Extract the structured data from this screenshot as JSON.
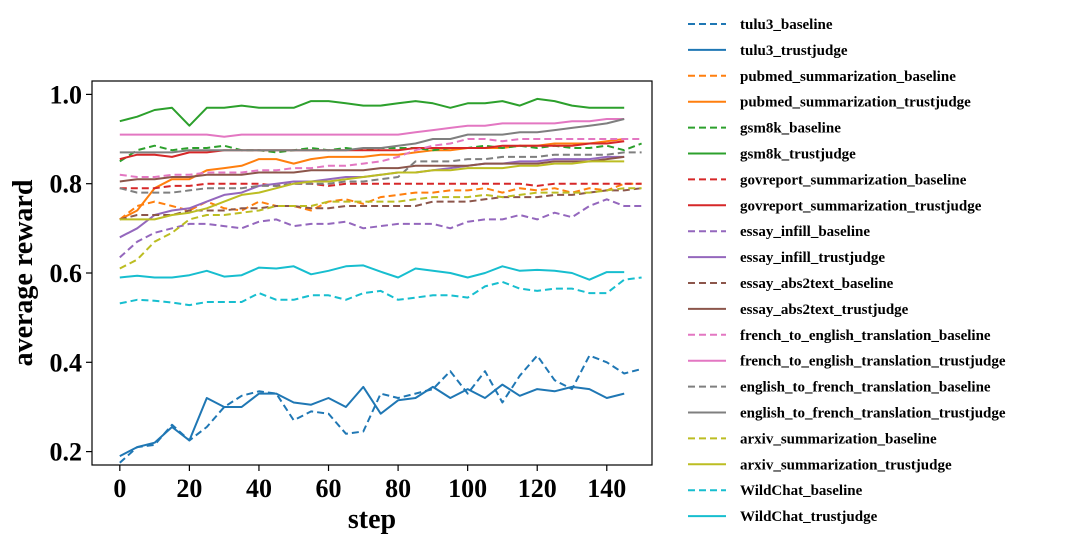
{
  "chart_data": {
    "type": "line",
    "title": "",
    "xlabel": "step",
    "ylabel": "average reward",
    "xlim": [
      -8,
      153
    ],
    "ylim": [
      0.17,
      1.03
    ],
    "xticks": [
      0,
      20,
      40,
      60,
      80,
      100,
      120,
      140
    ],
    "xtick_labels": [
      "0",
      "20",
      "40",
      "60",
      "80",
      "100",
      "120",
      "140"
    ],
    "yticks": [
      0.2,
      0.4,
      0.6,
      0.8,
      1.0
    ],
    "ytick_labels": [
      "0.2",
      "0.4",
      "0.6",
      "0.8",
      "1.0"
    ],
    "grid": false,
    "legend_position": "outside-right",
    "x": [
      0,
      5,
      10,
      15,
      20,
      25,
      30,
      35,
      40,
      45,
      50,
      55,
      60,
      65,
      70,
      75,
      80,
      85,
      90,
      95,
      100,
      105,
      110,
      115,
      120,
      125,
      130,
      135,
      140,
      145,
      150
    ],
    "series": [
      {
        "name": "tulu3_baseline",
        "color": "#1f77b4",
        "dashed": true,
        "values": [
          0.175,
          0.21,
          0.215,
          0.26,
          0.225,
          0.255,
          0.3,
          0.325,
          0.335,
          0.33,
          0.27,
          0.29,
          0.285,
          0.24,
          0.245,
          0.33,
          0.32,
          0.33,
          0.34,
          0.38,
          0.33,
          0.38,
          0.31,
          0.37,
          0.415,
          0.36,
          0.34,
          0.415,
          0.4,
          0.375,
          0.385
        ]
      },
      {
        "name": "tulu3_trustjudge",
        "color": "#1f77b4",
        "dashed": false,
        "values": [
          0.19,
          0.21,
          0.22,
          0.255,
          0.225,
          0.32,
          0.3,
          0.3,
          0.33,
          0.33,
          0.31,
          0.305,
          0.32,
          0.3,
          0.345,
          0.285,
          0.315,
          0.32,
          0.345,
          0.32,
          0.34,
          0.32,
          0.35,
          0.325,
          0.34,
          0.335,
          0.345,
          0.34,
          0.32,
          0.33,
          null
        ]
      },
      {
        "name": "pubmed_summarization_baseline",
        "color": "#ff7f0e",
        "dashed": true,
        "values": [
          0.72,
          0.75,
          0.76,
          0.75,
          0.74,
          0.76,
          0.745,
          0.74,
          0.76,
          0.75,
          0.75,
          0.74,
          0.76,
          0.765,
          0.755,
          0.77,
          0.775,
          0.78,
          0.78,
          0.785,
          0.785,
          0.79,
          0.78,
          0.79,
          0.785,
          0.79,
          0.78,
          0.79,
          0.785,
          0.8,
          0.8
        ]
      },
      {
        "name": "pubmed_summarization_trustjudge",
        "color": "#ff7f0e",
        "dashed": false,
        "values": [
          0.72,
          0.74,
          0.79,
          0.81,
          0.81,
          0.83,
          0.835,
          0.84,
          0.855,
          0.855,
          0.845,
          0.855,
          0.86,
          0.86,
          0.86,
          0.865,
          0.865,
          0.87,
          0.875,
          0.875,
          0.88,
          0.88,
          0.88,
          0.885,
          0.885,
          0.89,
          0.89,
          0.89,
          0.895,
          0.9,
          null
        ]
      },
      {
        "name": "gsm8k_baseline",
        "color": "#2ca02c",
        "dashed": true,
        "values": [
          0.85,
          0.875,
          0.885,
          0.875,
          0.88,
          0.88,
          0.885,
          0.875,
          0.875,
          0.87,
          0.875,
          0.88,
          0.875,
          0.88,
          0.875,
          0.88,
          0.88,
          0.88,
          0.875,
          0.88,
          0.88,
          0.885,
          0.88,
          0.885,
          0.88,
          0.885,
          0.88,
          0.88,
          0.885,
          0.875,
          0.89
        ]
      },
      {
        "name": "gsm8k_trustjudge",
        "color": "#2ca02c",
        "dashed": false,
        "values": [
          0.94,
          0.95,
          0.965,
          0.97,
          0.93,
          0.97,
          0.97,
          0.975,
          0.97,
          0.97,
          0.97,
          0.985,
          0.985,
          0.98,
          0.975,
          0.975,
          0.98,
          0.985,
          0.98,
          0.97,
          0.98,
          0.98,
          0.985,
          0.975,
          0.99,
          0.985,
          0.975,
          0.97,
          0.97,
          0.97,
          null
        ]
      },
      {
        "name": "govreport_summarization_baseline",
        "color": "#d62728",
        "dashed": true,
        "values": [
          0.79,
          0.79,
          0.79,
          0.795,
          0.795,
          0.8,
          0.8,
          0.8,
          0.8,
          0.795,
          0.8,
          0.8,
          0.795,
          0.8,
          0.8,
          0.8,
          0.8,
          0.8,
          0.8,
          0.8,
          0.8,
          0.8,
          0.8,
          0.8,
          0.795,
          0.8,
          0.8,
          0.8,
          0.8,
          0.8,
          0.8
        ]
      },
      {
        "name": "govreport_summarization_trustjudge",
        "color": "#d62728",
        "dashed": false,
        "values": [
          0.855,
          0.865,
          0.865,
          0.86,
          0.87,
          0.87,
          0.875,
          0.875,
          0.875,
          0.875,
          0.875,
          0.875,
          0.875,
          0.875,
          0.875,
          0.875,
          0.875,
          0.88,
          0.88,
          0.88,
          0.88,
          0.88,
          0.885,
          0.885,
          0.885,
          0.885,
          0.885,
          0.89,
          0.89,
          0.895,
          null
        ]
      },
      {
        "name": "essay_infill_baseline",
        "color": "#9467bd",
        "dashed": true,
        "values": [
          0.635,
          0.67,
          0.69,
          0.7,
          0.71,
          0.71,
          0.705,
          0.7,
          0.715,
          0.72,
          0.705,
          0.71,
          0.71,
          0.715,
          0.7,
          0.705,
          0.71,
          0.71,
          0.71,
          0.7,
          0.715,
          0.72,
          0.72,
          0.73,
          0.72,
          0.735,
          0.725,
          0.75,
          0.765,
          0.75,
          0.75
        ]
      },
      {
        "name": "essay_infill_trustjudge",
        "color": "#9467bd",
        "dashed": false,
        "values": [
          0.68,
          0.7,
          0.73,
          0.74,
          0.745,
          0.76,
          0.775,
          0.78,
          0.795,
          0.8,
          0.805,
          0.805,
          0.81,
          0.815,
          0.815,
          0.82,
          0.825,
          0.825,
          0.83,
          0.835,
          0.84,
          0.845,
          0.845,
          0.85,
          0.85,
          0.855,
          0.855,
          0.855,
          0.86,
          0.86,
          null
        ]
      },
      {
        "name": "essay_abs2text_baseline",
        "color": "#8c564b",
        "dashed": true,
        "values": [
          0.72,
          0.73,
          0.73,
          0.73,
          0.74,
          0.74,
          0.74,
          0.745,
          0.745,
          0.75,
          0.75,
          0.745,
          0.745,
          0.75,
          0.75,
          0.75,
          0.75,
          0.75,
          0.76,
          0.76,
          0.76,
          0.765,
          0.77,
          0.77,
          0.77,
          0.775,
          0.775,
          0.78,
          0.785,
          0.785,
          0.79
        ]
      },
      {
        "name": "essay_abs2text_trustjudge",
        "color": "#8c564b",
        "dashed": false,
        "values": [
          0.805,
          0.81,
          0.81,
          0.815,
          0.815,
          0.82,
          0.82,
          0.82,
          0.825,
          0.825,
          0.825,
          0.83,
          0.83,
          0.83,
          0.83,
          0.835,
          0.835,
          0.84,
          0.84,
          0.84,
          0.84,
          0.845,
          0.845,
          0.845,
          0.845,
          0.85,
          0.85,
          0.85,
          0.855,
          0.86,
          null
        ]
      },
      {
        "name": "french_to_english_translation_baseline",
        "color": "#e377c2",
        "dashed": true,
        "values": [
          0.82,
          0.815,
          0.815,
          0.82,
          0.82,
          0.825,
          0.825,
          0.825,
          0.83,
          0.83,
          0.835,
          0.835,
          0.84,
          0.84,
          0.845,
          0.85,
          0.86,
          0.875,
          0.885,
          0.89,
          0.9,
          0.9,
          0.895,
          0.9,
          0.9,
          0.9,
          0.9,
          0.9,
          0.9,
          0.9,
          0.9
        ]
      },
      {
        "name": "french_to_english_translation_trustjudge",
        "color": "#e377c2",
        "dashed": false,
        "values": [
          0.91,
          0.91,
          0.91,
          0.91,
          0.91,
          0.91,
          0.905,
          0.91,
          0.91,
          0.91,
          0.91,
          0.91,
          0.91,
          0.91,
          0.91,
          0.91,
          0.91,
          0.915,
          0.92,
          0.925,
          0.93,
          0.93,
          0.935,
          0.935,
          0.935,
          0.935,
          0.94,
          0.94,
          0.945,
          0.945,
          null
        ]
      },
      {
        "name": "english_to_french_translation_baseline",
        "color": "#7f7f7f",
        "dashed": true,
        "values": [
          0.79,
          0.78,
          0.78,
          0.78,
          0.785,
          0.79,
          0.79,
          0.79,
          0.795,
          0.795,
          0.8,
          0.8,
          0.8,
          0.805,
          0.805,
          0.81,
          0.815,
          0.85,
          0.85,
          0.85,
          0.855,
          0.855,
          0.86,
          0.86,
          0.86,
          0.865,
          0.865,
          0.865,
          0.865,
          0.87,
          0.87
        ]
      },
      {
        "name": "english_to_french_translation_trustjudge",
        "color": "#7f7f7f",
        "dashed": false,
        "values": [
          0.87,
          0.87,
          0.87,
          0.87,
          0.875,
          0.875,
          0.875,
          0.875,
          0.875,
          0.875,
          0.875,
          0.875,
          0.875,
          0.875,
          0.88,
          0.88,
          0.885,
          0.89,
          0.9,
          0.9,
          0.91,
          0.91,
          0.91,
          0.915,
          0.915,
          0.92,
          0.925,
          0.93,
          0.935,
          0.945,
          null
        ]
      },
      {
        "name": "arxiv_summarization_baseline",
        "color": "#bcbd22",
        "dashed": true,
        "values": [
          0.61,
          0.63,
          0.67,
          0.69,
          0.72,
          0.73,
          0.73,
          0.735,
          0.74,
          0.75,
          0.75,
          0.75,
          0.76,
          0.76,
          0.76,
          0.76,
          0.76,
          0.765,
          0.77,
          0.77,
          0.77,
          0.775,
          0.77,
          0.775,
          0.78,
          0.78,
          0.78,
          0.78,
          0.785,
          0.79,
          0.79
        ]
      },
      {
        "name": "arxiv_summarization_trustjudge",
        "color": "#bcbd22",
        "dashed": false,
        "values": [
          0.72,
          0.72,
          0.72,
          0.73,
          0.735,
          0.745,
          0.76,
          0.775,
          0.78,
          0.79,
          0.8,
          0.805,
          0.805,
          0.81,
          0.815,
          0.82,
          0.825,
          0.825,
          0.83,
          0.83,
          0.835,
          0.835,
          0.835,
          0.84,
          0.84,
          0.845,
          0.845,
          0.85,
          0.85,
          0.85,
          null
        ]
      },
      {
        "name": "WildChat_baseline",
        "color": "#17becf",
        "dashed": true,
        "values": [
          0.532,
          0.54,
          0.538,
          0.534,
          0.528,
          0.535,
          0.535,
          0.535,
          0.555,
          0.54,
          0.54,
          0.55,
          0.55,
          0.54,
          0.555,
          0.56,
          0.54,
          0.545,
          0.55,
          0.55,
          0.545,
          0.57,
          0.58,
          0.565,
          0.56,
          0.565,
          0.565,
          0.555,
          0.555,
          0.585,
          0.59
        ]
      },
      {
        "name": "WildChat_trustjudge",
        "color": "#17becf",
        "dashed": false,
        "values": [
          0.59,
          0.594,
          0.59,
          0.59,
          0.595,
          0.605,
          0.592,
          0.595,
          0.612,
          0.61,
          0.615,
          0.597,
          0.605,
          0.615,
          0.617,
          0.603,
          0.59,
          0.61,
          0.605,
          0.6,
          0.59,
          0.6,
          0.615,
          0.605,
          0.607,
          0.605,
          0.6,
          0.585,
          0.602,
          0.602,
          null
        ]
      }
    ]
  }
}
